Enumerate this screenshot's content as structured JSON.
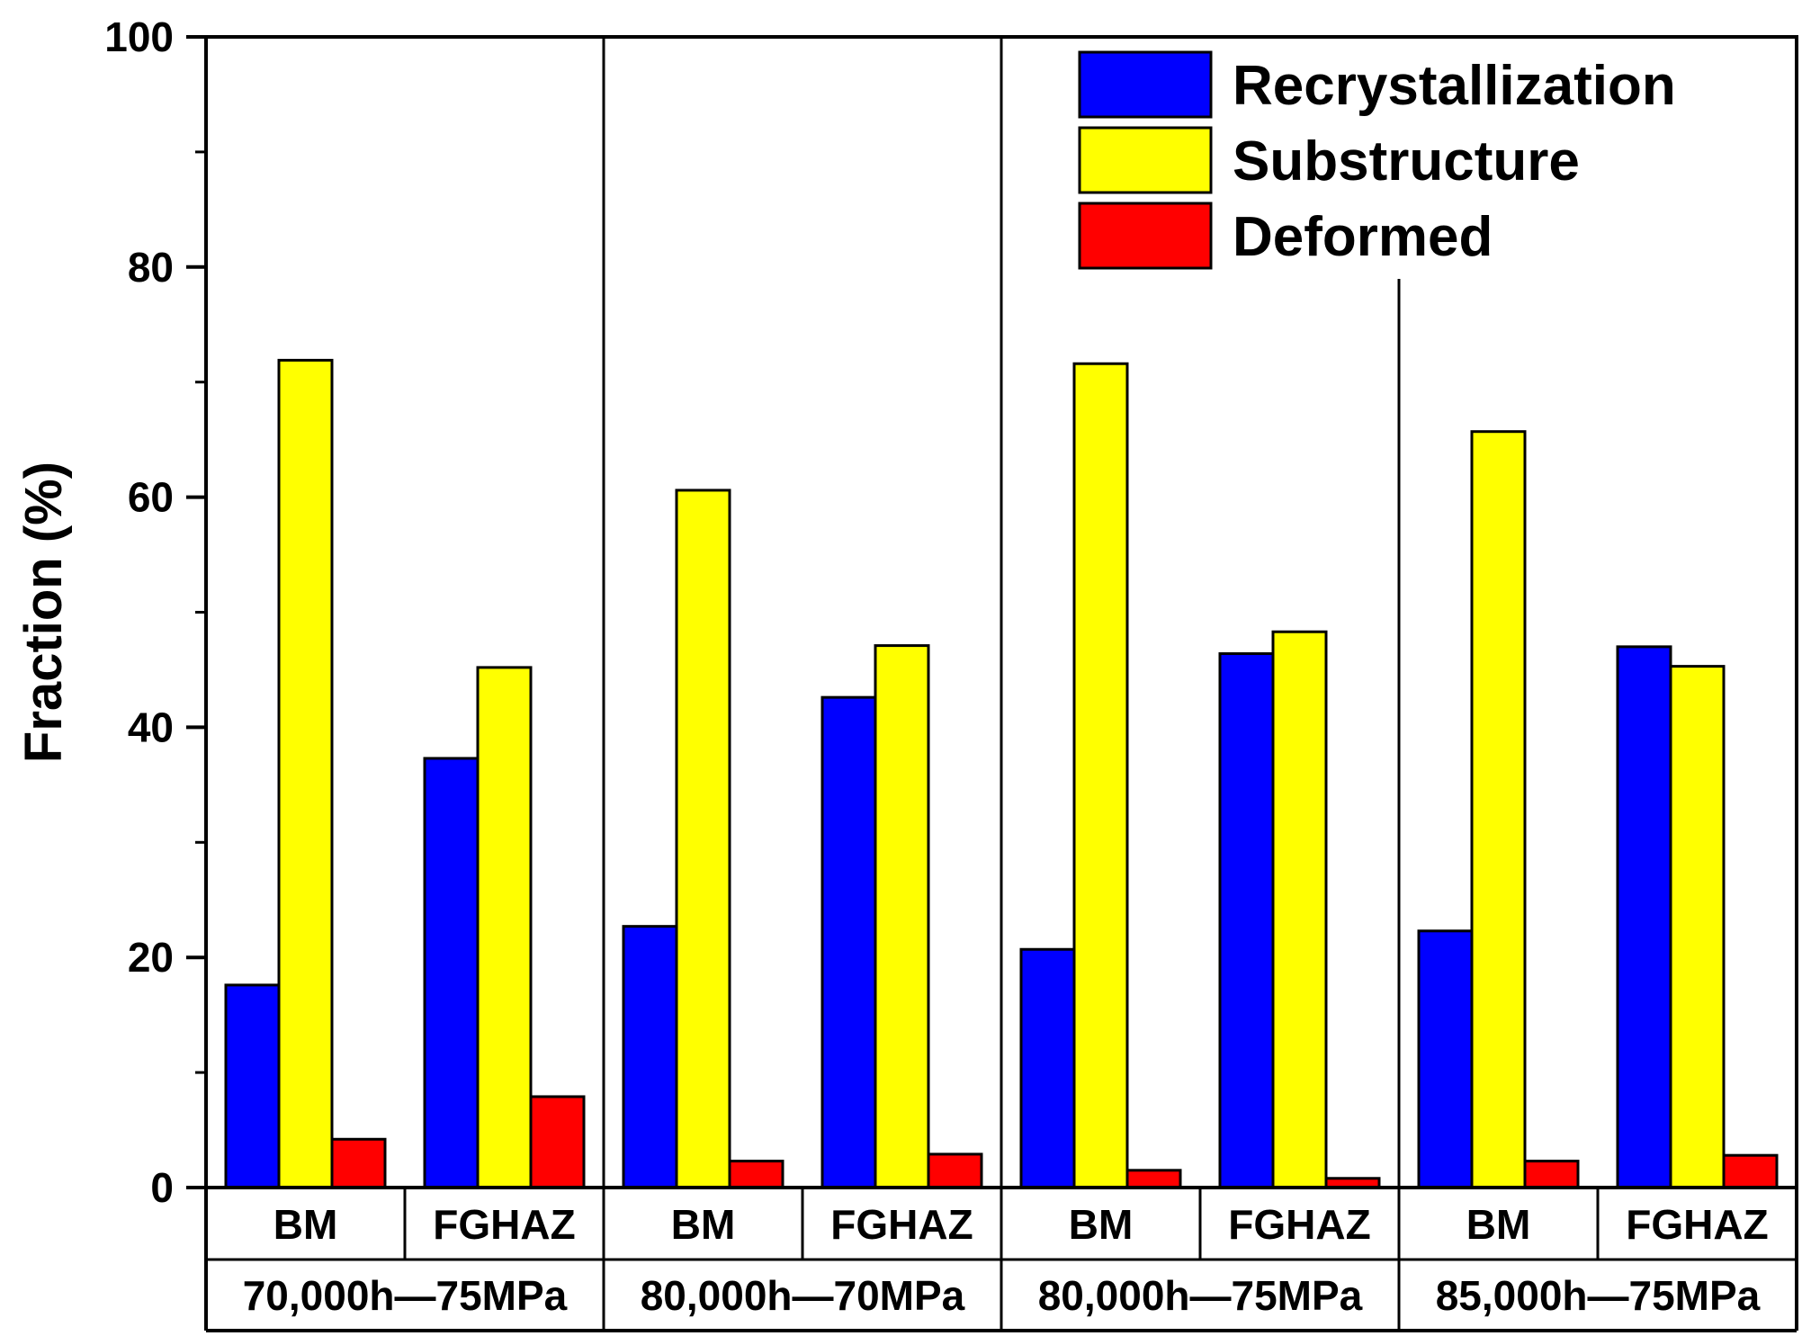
{
  "chart_data": {
    "type": "bar",
    "title": "",
    "xlabel": "",
    "ylabel": "Fraction (%)",
    "ylim": [
      0,
      100
    ],
    "y_ticks": [
      "0",
      "20",
      "40",
      "60",
      "80",
      "100"
    ],
    "legend_position": "top-right",
    "groups": [
      {
        "label": "70,000h—75MPa",
        "categories": [
          "BM",
          "FGHAZ"
        ]
      },
      {
        "label": "80,000h—70MPa",
        "categories": [
          "BM",
          "FGHAZ"
        ]
      },
      {
        "label": "80,000h—75MPa",
        "categories": [
          "BM",
          "FGHAZ"
        ]
      },
      {
        "label": "85,000h—75MPa",
        "categories": [
          "BM",
          "FGHAZ"
        ]
      }
    ],
    "series": [
      {
        "name": "Recrystallization",
        "color": "#0000ff",
        "values": [
          17.6,
          37.3,
          22.7,
          42.6,
          20.7,
          46.4,
          22.3,
          47.0
        ]
      },
      {
        "name": "Substructure",
        "color": "#ffff00",
        "values": [
          71.9,
          45.2,
          60.6,
          47.1,
          71.6,
          48.3,
          65.7,
          45.3
        ]
      },
      {
        "name": "Deformed",
        "color": "#ff0000",
        "values": [
          4.2,
          7.9,
          2.3,
          2.9,
          1.5,
          0.8,
          2.3,
          2.8
        ]
      }
    ]
  }
}
